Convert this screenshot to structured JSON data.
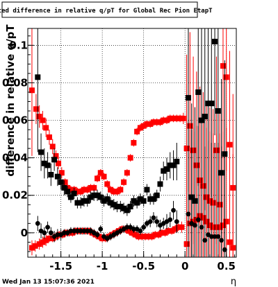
{
  "chart_data": {
    "type": "scatter",
    "title": "Fitted difference in relative q/pT for Global Rec Pion EtapT",
    "xlabel": "η",
    "ylabel": "difference in relative q/pT",
    "xlim": [
      -1.9,
      0.62
    ],
    "ylim": [
      -0.013,
      0.109
    ],
    "xticks": [
      -1.5,
      -1,
      -0.5,
      0,
      0.5
    ],
    "xtick_labels": [
      "-1.5",
      "-1",
      "-0.5",
      "0",
      "0.5"
    ],
    "yticks": [
      0,
      0.02,
      0.04,
      0.06,
      0.08,
      0.1
    ],
    "ytick_labels": [
      "0",
      "0.02",
      "0.04",
      "0.06",
      "0.08",
      "0.1"
    ],
    "grid": true,
    "footer": "Wed Jan 13 15:07:36 2021",
    "series": [
      {
        "color": "#ff0000",
        "marker": "square",
        "points": [
          [
            -1.85,
            0.076,
            0.035
          ],
          [
            -1.8,
            0.066,
            0.008
          ],
          [
            -1.76,
            0.062,
            0.006
          ],
          [
            -1.72,
            0.06,
            0.005
          ],
          [
            -1.68,
            0.056,
            0.005
          ],
          [
            -1.64,
            0.051,
            0.004
          ],
          [
            -1.6,
            0.046,
            0.004
          ],
          [
            -1.56,
            0.041,
            0.003
          ],
          [
            -1.53,
            0.037,
            0.003
          ],
          [
            -1.49,
            0.032,
            0.003
          ],
          [
            -1.45,
            0.027,
            0.002
          ],
          [
            -1.42,
            0.024,
            0.002
          ],
          [
            -1.38,
            0.023,
            0.002
          ],
          [
            -1.34,
            0.023,
            0.002
          ],
          [
            -1.3,
            0.022,
            0.002
          ],
          [
            -1.26,
            0.022,
            0.002
          ],
          [
            -1.22,
            0.023,
            0.002
          ],
          [
            -1.18,
            0.023,
            0.002
          ],
          [
            -1.14,
            0.024,
            0.002
          ],
          [
            -1.1,
            0.024,
            0.002
          ],
          [
            -1.06,
            0.029,
            0.002
          ],
          [
            -1.02,
            0.032,
            0.002
          ],
          [
            -0.98,
            0.03,
            0.002
          ],
          [
            -0.94,
            0.026,
            0.002
          ],
          [
            -0.9,
            0.023,
            0.002
          ],
          [
            -0.86,
            0.022,
            0.002
          ],
          [
            -0.82,
            0.022,
            0.002
          ],
          [
            -0.78,
            0.023,
            0.002
          ],
          [
            -0.74,
            0.027,
            0.002
          ],
          [
            -0.7,
            0.032,
            0.002
          ],
          [
            -0.66,
            0.04,
            0.002
          ],
          [
            -0.62,
            0.048,
            0.002
          ],
          [
            -0.58,
            0.054,
            0.002
          ],
          [
            -0.54,
            0.056,
            0.002
          ],
          [
            -0.5,
            0.057,
            0.002
          ],
          [
            -0.46,
            0.058,
            0.002
          ],
          [
            -0.42,
            0.058,
            0.002
          ],
          [
            -0.38,
            0.059,
            0.002
          ],
          [
            -0.34,
            0.059,
            0.002
          ],
          [
            -0.3,
            0.059,
            0.002
          ],
          [
            -0.26,
            0.06,
            0.002
          ],
          [
            -0.22,
            0.06,
            0.002
          ],
          [
            -0.18,
            0.061,
            0.002
          ],
          [
            -0.14,
            0.061,
            0.002
          ],
          [
            -0.1,
            0.061,
            0.002
          ],
          [
            -0.06,
            0.061,
            0.002
          ],
          [
            -0.02,
            0.061,
            0.003
          ],
          [
            0.02,
            0.045,
            0.05
          ],
          [
            0.06,
            0.057,
            0.05
          ],
          [
            0.1,
            0.044,
            0.05
          ],
          [
            0.14,
            0.036,
            0.05
          ],
          [
            0.18,
            0.028,
            0.05
          ],
          [
            0.22,
            0.025,
            0.05
          ],
          [
            0.26,
            0.019,
            0.05
          ],
          [
            0.3,
            0.017,
            0.05
          ],
          [
            0.34,
            0.016,
            0.05
          ],
          [
            0.38,
            0.044,
            0.05
          ],
          [
            0.42,
            0.015,
            0.05
          ],
          [
            0.46,
            0.089,
            0.05
          ],
          [
            0.5,
            0.083,
            0.05
          ],
          [
            0.54,
            0.047,
            0.05
          ],
          [
            0.58,
            0.024,
            0.05
          ]
        ]
      },
      {
        "color": "#ff0000",
        "marker": "square",
        "points": [
          [
            -1.85,
            -0.008,
            0.004
          ],
          [
            -1.81,
            -0.007,
            0.003
          ],
          [
            -1.76,
            -0.006,
            0.003
          ],
          [
            -1.72,
            -0.005,
            0.003
          ],
          [
            -1.68,
            -0.004,
            0.003
          ],
          [
            -1.64,
            -0.003,
            0.002
          ],
          [
            -1.6,
            -0.003,
            0.002
          ],
          [
            -1.56,
            -0.002,
            0.002
          ],
          [
            -1.52,
            -0.001,
            0.002
          ],
          [
            -1.48,
            -0.001,
            0.002
          ],
          [
            -1.44,
            0.0,
            0.002
          ],
          [
            -1.4,
            0.0,
            0.002
          ],
          [
            -1.36,
            0.0,
            0.002
          ],
          [
            -1.32,
            0.001,
            0.002
          ],
          [
            -1.28,
            0.001,
            0.002
          ],
          [
            -1.24,
            0.001,
            0.002
          ],
          [
            -1.2,
            0.001,
            0.002
          ],
          [
            -1.16,
            0.001,
            0.002
          ],
          [
            -1.12,
            0.0,
            0.002
          ],
          [
            -1.08,
            -0.001,
            0.002
          ],
          [
            -1.04,
            -0.002,
            0.002
          ],
          [
            -1.0,
            -0.003,
            0.002
          ],
          [
            -0.96,
            -0.003,
            0.002
          ],
          [
            -0.92,
            -0.002,
            0.002
          ],
          [
            -0.88,
            -0.001,
            0.002
          ],
          [
            -0.84,
            0.0,
            0.002
          ],
          [
            -0.8,
            0.001,
            0.002
          ],
          [
            -0.76,
            0.002,
            0.002
          ],
          [
            -0.72,
            0.002,
            0.002
          ],
          [
            -0.68,
            0.001,
            0.002
          ],
          [
            -0.64,
            0.0,
            0.002
          ],
          [
            -0.6,
            -0.001,
            0.002
          ],
          [
            -0.56,
            -0.002,
            0.002
          ],
          [
            -0.52,
            -0.002,
            0.002
          ],
          [
            -0.48,
            -0.002,
            0.002
          ],
          [
            -0.44,
            -0.002,
            0.002
          ],
          [
            -0.4,
            -0.002,
            0.002
          ],
          [
            -0.36,
            -0.001,
            0.002
          ],
          [
            -0.32,
            -0.001,
            0.002
          ],
          [
            -0.28,
            0.0,
            0.002
          ],
          [
            -0.24,
            0.0,
            0.002
          ],
          [
            -0.2,
            0.001,
            0.002
          ],
          [
            -0.16,
            0.001,
            0.002
          ],
          [
            -0.12,
            0.002,
            0.002
          ],
          [
            -0.08,
            0.003,
            0.002
          ],
          [
            -0.04,
            0.003,
            0.003
          ],
          [
            0.02,
            -0.006,
            0.05
          ],
          [
            0.06,
            0.005,
            0.05
          ],
          [
            0.1,
            0.006,
            0.05
          ],
          [
            0.14,
            0.007,
            0.05
          ],
          [
            0.18,
            0.009,
            0.05
          ],
          [
            0.22,
            0.008,
            0.05
          ],
          [
            0.26,
            0.006,
            0.05
          ],
          [
            0.3,
            0.004,
            0.05
          ],
          [
            0.34,
            0.003,
            0.05
          ],
          [
            0.38,
            0.003,
            0.05
          ],
          [
            0.42,
            0.003,
            0.05
          ],
          [
            0.46,
            0.004,
            0.05
          ],
          [
            0.5,
            0.006,
            0.05
          ],
          [
            0.54,
            -0.005,
            0.05
          ],
          [
            0.58,
            -0.008,
            0.05
          ]
        ]
      },
      {
        "color": "#000000",
        "marker": "square",
        "points": [
          [
            -1.78,
            0.083,
            0.04
          ],
          [
            -1.74,
            0.043,
            0.01
          ],
          [
            -1.7,
            0.037,
            0.008
          ],
          [
            -1.66,
            0.036,
            0.007
          ],
          [
            -1.62,
            0.031,
            0.006
          ],
          [
            -1.58,
            0.039,
            0.006
          ],
          [
            -1.54,
            0.03,
            0.005
          ],
          [
            -1.5,
            0.027,
            0.004
          ],
          [
            -1.46,
            0.024,
            0.004
          ],
          [
            -1.42,
            0.022,
            0.003
          ],
          [
            -1.38,
            0.019,
            0.003
          ],
          [
            -1.34,
            0.021,
            0.003
          ],
          [
            -1.3,
            0.016,
            0.003
          ],
          [
            -1.26,
            0.016,
            0.003
          ],
          [
            -1.22,
            0.017,
            0.003
          ],
          [
            -1.18,
            0.017,
            0.003
          ],
          [
            -1.14,
            0.019,
            0.003
          ],
          [
            -1.1,
            0.02,
            0.003
          ],
          [
            -1.06,
            0.02,
            0.003
          ],
          [
            -1.02,
            0.019,
            0.003
          ],
          [
            -0.98,
            0.017,
            0.003
          ],
          [
            -0.94,
            0.018,
            0.003
          ],
          [
            -0.9,
            0.016,
            0.003
          ],
          [
            -0.86,
            0.015,
            0.003
          ],
          [
            -0.82,
            0.014,
            0.003
          ],
          [
            -0.78,
            0.014,
            0.003
          ],
          [
            -0.74,
            0.013,
            0.003
          ],
          [
            -0.7,
            0.012,
            0.003
          ],
          [
            -0.66,
            0.014,
            0.003
          ],
          [
            -0.62,
            0.017,
            0.003
          ],
          [
            -0.58,
            0.016,
            0.003
          ],
          [
            -0.54,
            0.018,
            0.003
          ],
          [
            -0.5,
            0.017,
            0.003
          ],
          [
            -0.46,
            0.023,
            0.003
          ],
          [
            -0.42,
            0.018,
            0.003
          ],
          [
            -0.38,
            0.018,
            0.003
          ],
          [
            -0.34,
            0.02,
            0.003
          ],
          [
            -0.3,
            0.026,
            0.004
          ],
          [
            -0.26,
            0.033,
            0.005
          ],
          [
            -0.22,
            0.034,
            0.006
          ],
          [
            -0.18,
            0.036,
            0.007
          ],
          [
            -0.14,
            0.036,
            0.008
          ],
          [
            -0.1,
            0.038,
            0.01
          ],
          [
            0.04,
            0.072,
            0.05
          ],
          [
            0.08,
            0.019,
            0.05
          ],
          [
            0.12,
            0.017,
            0.05
          ],
          [
            0.16,
            0.075,
            0.05
          ],
          [
            0.2,
            0.06,
            0.05
          ],
          [
            0.24,
            0.062,
            0.05
          ],
          [
            0.28,
            0.069,
            0.05
          ],
          [
            0.32,
            0.069,
            0.05
          ],
          [
            0.36,
            0.102,
            0.05
          ],
          [
            0.4,
            0.065,
            0.05
          ],
          [
            0.44,
            0.032,
            0.05
          ],
          [
            0.48,
            0.042,
            0.05
          ]
        ]
      },
      {
        "color": "#000000",
        "marker": "circle",
        "points": [
          [
            -1.78,
            0.005,
            0.004
          ],
          [
            -1.74,
            0.001,
            0.004
          ],
          [
            -1.7,
            0.0,
            0.003
          ],
          [
            -1.66,
            0.003,
            0.003
          ],
          [
            -1.62,
            0.0,
            0.003
          ],
          [
            -1.58,
            -0.002,
            0.003
          ],
          [
            -1.54,
            -0.001,
            0.003
          ],
          [
            -1.5,
            -0.001,
            0.003
          ],
          [
            -1.46,
            0.0,
            0.002
          ],
          [
            -1.42,
            0.0,
            0.002
          ],
          [
            -1.38,
            0.001,
            0.002
          ],
          [
            -1.34,
            0.001,
            0.002
          ],
          [
            -1.3,
            0.001,
            0.002
          ],
          [
            -1.26,
            0.001,
            0.002
          ],
          [
            -1.22,
            0.001,
            0.002
          ],
          [
            -1.18,
            0.001,
            0.002
          ],
          [
            -1.14,
            0.001,
            0.002
          ],
          [
            -1.1,
            0.0,
            0.002
          ],
          [
            -1.06,
            -0.001,
            0.002
          ],
          [
            -1.02,
            0.002,
            0.002
          ],
          [
            -0.98,
            -0.002,
            0.002
          ],
          [
            -0.94,
            -0.003,
            0.002
          ],
          [
            -0.9,
            -0.002,
            0.002
          ],
          [
            -0.86,
            -0.001,
            0.002
          ],
          [
            -0.82,
            0.0,
            0.002
          ],
          [
            -0.78,
            0.001,
            0.002
          ],
          [
            -0.74,
            0.002,
            0.002
          ],
          [
            -0.7,
            0.003,
            0.002
          ],
          [
            -0.66,
            0.003,
            0.002
          ],
          [
            -0.62,
            0.002,
            0.002
          ],
          [
            -0.58,
            0.002,
            0.002
          ],
          [
            -0.54,
            0.001,
            0.002
          ],
          [
            -0.5,
            0.003,
            0.002
          ],
          [
            -0.46,
            0.005,
            0.002
          ],
          [
            -0.42,
            0.006,
            0.003
          ],
          [
            -0.38,
            0.008,
            0.003
          ],
          [
            -0.34,
            0.006,
            0.003
          ],
          [
            -0.3,
            0.004,
            0.003
          ],
          [
            -0.26,
            0.005,
            0.003
          ],
          [
            -0.22,
            0.006,
            0.004
          ],
          [
            -0.18,
            0.007,
            0.004
          ],
          [
            -0.14,
            0.012,
            0.005
          ],
          [
            -0.1,
            0.006,
            0.006
          ],
          [
            0.04,
            0.01,
            0.05
          ],
          [
            0.08,
            0.005,
            0.05
          ],
          [
            0.12,
            0.004,
            0.05
          ],
          [
            0.16,
            0.007,
            0.05
          ],
          [
            0.2,
            0.003,
            0.05
          ],
          [
            0.24,
            -0.004,
            0.05
          ],
          [
            0.28,
            -0.001,
            0.05
          ],
          [
            0.32,
            -0.002,
            0.05
          ],
          [
            0.36,
            -0.002,
            0.05
          ],
          [
            0.4,
            -0.002,
            0.05
          ],
          [
            0.44,
            -0.004,
            0.05
          ],
          [
            0.48,
            -0.009,
            0.05
          ]
        ]
      }
    ]
  }
}
